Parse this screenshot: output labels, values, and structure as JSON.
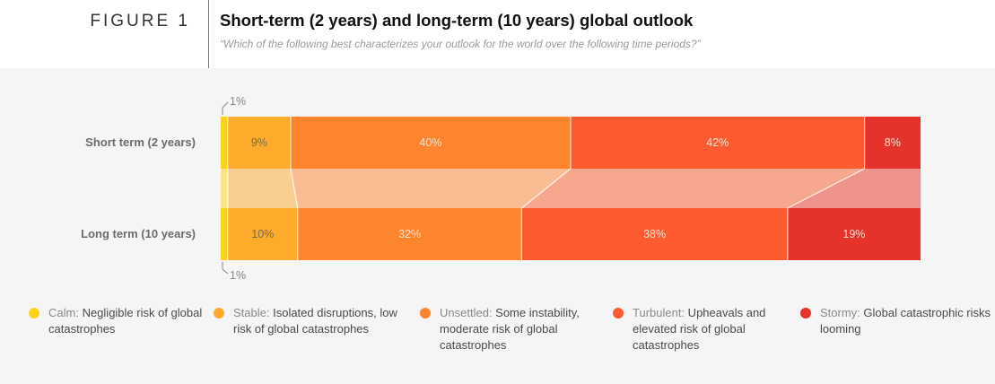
{
  "figure": {
    "label": "FIGURE 1",
    "title": "Short-term (2 years) and long-term (10 years) global outlook",
    "subtitle": "“Which of the following best characterizes your outlook for the world over the following time periods?”"
  },
  "chart_data": {
    "type": "bar",
    "orientation": "horizontal-stacked-100",
    "title": "Short-term (2 years) and long-term (10 years) global outlook",
    "categories": [
      "Short term (2 years)",
      "Long term (10 years)"
    ],
    "series": [
      {
        "name": "Calm",
        "description": "Negligible risk of global catastrophes",
        "color": "#fdd21f",
        "band_color": "#fbe38a",
        "values": [
          1,
          1
        ],
        "labels": [
          "1%",
          "1%"
        ]
      },
      {
        "name": "Stable",
        "description": "Isolated disruptions, low risk of global catastrophes",
        "color": "#fdab2a",
        "band_color": "#f9cf91",
        "values": [
          9,
          10
        ],
        "labels": [
          "9%",
          "10%"
        ]
      },
      {
        "name": "Unsettled",
        "description": "Some instability, moderate risk of global catastrophes",
        "color": "#fe852e",
        "band_color": "#f9bc93",
        "values": [
          40,
          32
        ],
        "labels": [
          "40%",
          "32%"
        ]
      },
      {
        "name": "Turbulent",
        "description": "Upheavals and elevated risk of global catastrophes",
        "color": "#fe5a30",
        "band_color": "#f8a78f",
        "values": [
          42,
          38
        ],
        "labels": [
          "42%",
          "38%"
        ]
      },
      {
        "name": "Stormy",
        "description": "Global catastrophic risks looming",
        "color": "#e5332b",
        "band_color": "#ee948d",
        "values": [
          8,
          19
        ],
        "labels": [
          "8%",
          "19%"
        ]
      }
    ],
    "xlim": [
      0,
      100
    ],
    "label_color_dark": "#7a6a50",
    "label_color_light": "#fde3cf",
    "callout_color": "#888888",
    "legend_position": "bottom"
  },
  "legend": [
    {
      "name": "Calm:",
      "text": " Negligible risk of global catastrophes",
      "color": "#fdd21f"
    },
    {
      "name": "Stable:",
      "text": " Isolated disruptions, low risk of global catastrophes",
      "color": "#fdab2a"
    },
    {
      "name": "Unsettled:",
      "text": " Some instability, moderate risk of global catastrophes",
      "color": "#fe852e"
    },
    {
      "name": "Turbulent:",
      "text": " Upheavals and elevated risk of global catastrophes",
      "color": "#fe5a30"
    },
    {
      "name": "Stormy:",
      "text": " Global catastrophic risks looming",
      "color": "#e5332b"
    }
  ]
}
